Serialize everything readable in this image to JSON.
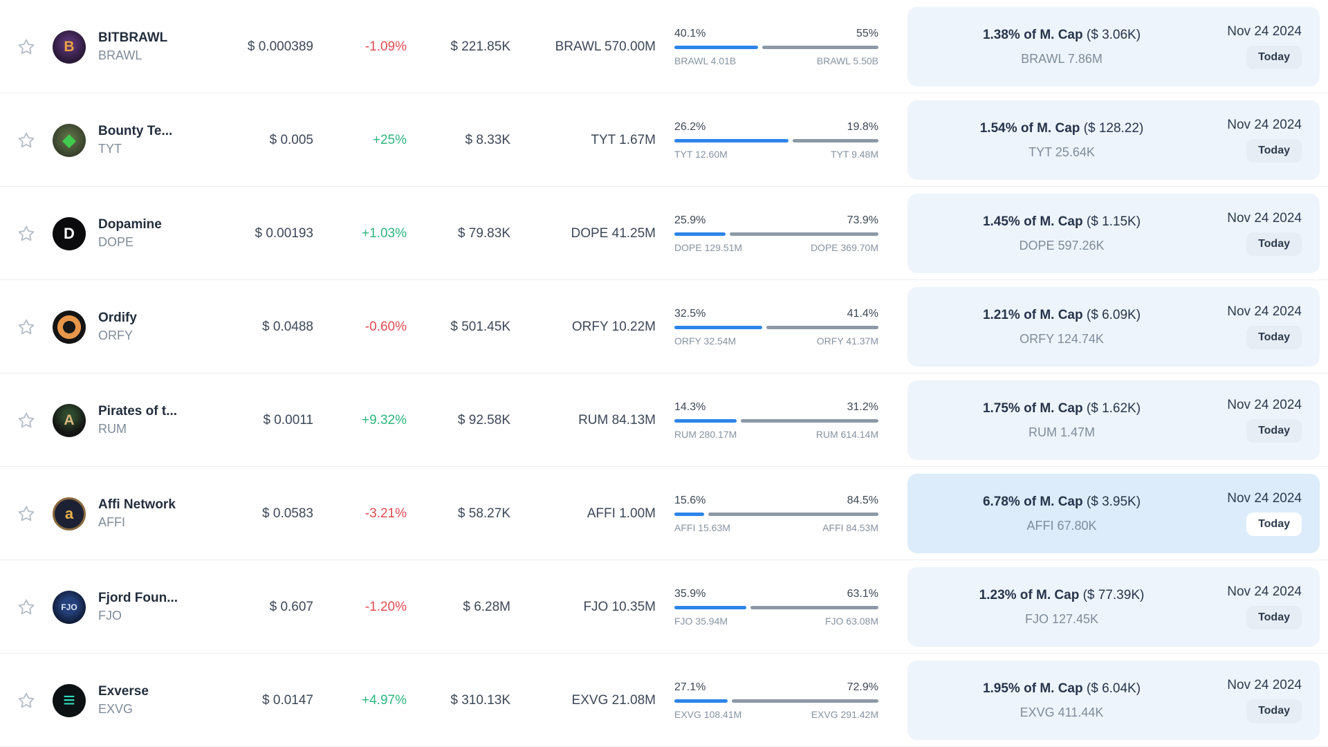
{
  "colors": {
    "accent_blue": "#2d84e9",
    "bar_gray": "#8d99a6",
    "up_green": "#2eb57e",
    "down_red": "#e04b52",
    "panel_bg": "#eef4fb",
    "panel_bg_highlighted": "#dcecfa",
    "badge_bg": "#e7edf4",
    "badge_bg_highlighted": "#ffffff"
  },
  "table": {
    "rows": [
      {
        "name": "BITBRAWL",
        "ticker": "BRAWL",
        "price": "$ 0.000389",
        "change": "-1.09%",
        "direction": "down",
        "volume": "$ 221.85K",
        "unlock": "BRAWL 570.00M",
        "pct_left": "40.1%",
        "pct_right": "55%",
        "lbl_left": "BRAWL 4.01B",
        "lbl_right": "BRAWL 5.50B",
        "mcap_bold": "1.38% of M. Cap",
        "mcap_paren": "($ 3.06K)",
        "mcap_sub": "BRAWL 7.86M",
        "date": "Nov 24 2024",
        "today": "Today",
        "highlighted": false,
        "logo": {
          "icon": "bitbrawl-logo",
          "glyph": "B",
          "bg": "radial-gradient(circle at 50% 42%, #53306b 0 8px, #2b1a3a 65%)",
          "fg": "#eca33f",
          "size": "21px"
        }
      },
      {
        "name": "Bounty Te...",
        "ticker": "TYT",
        "price": "$ 0.005",
        "change": "+25%",
        "direction": "up",
        "volume": "$ 8.33K",
        "unlock": "TYT 1.67M",
        "pct_left": "26.2%",
        "pct_right": "19.8%",
        "lbl_left": "TYT 12.60M",
        "lbl_right": "TYT 9.48M",
        "mcap_bold": "1.54% of M. Cap",
        "mcap_paren": "($ 128.22)",
        "mcap_sub": "TYT 25.64K",
        "date": "Nov 24 2024",
        "today": "Today",
        "highlighted": false,
        "logo": {
          "icon": "bounty-temple-logo",
          "glyph": "◆",
          "bg": "radial-gradient(circle at 50% 45%, #5a6b43 0 6px, #37402c 70%)",
          "fg": "#3ecb4e",
          "size": "26px"
        }
      },
      {
        "name": "Dopamine",
        "ticker": "DOPE",
        "price": "$ 0.00193",
        "change": "+1.03%",
        "direction": "up",
        "volume": "$ 79.83K",
        "unlock": "DOPE 41.25M",
        "pct_left": "25.9%",
        "pct_right": "73.9%",
        "lbl_left": "DOPE 129.51M",
        "lbl_right": "DOPE 369.70M",
        "mcap_bold": "1.45% of M. Cap",
        "mcap_paren": "($ 1.15K)",
        "mcap_sub": "DOPE 597.26K",
        "date": "Nov 24 2024",
        "today": "Today",
        "highlighted": false,
        "logo": {
          "icon": "dopamine-logo",
          "glyph": "D",
          "bg": "#0b0b0d",
          "fg": "#ffffff",
          "size": "22px"
        }
      },
      {
        "name": "Ordify",
        "ticker": "ORFY",
        "price": "$ 0.0488",
        "change": "-0.60%",
        "direction": "down",
        "volume": "$ 501.45K",
        "unlock": "ORFY 10.22M",
        "pct_left": "32.5%",
        "pct_right": "41.4%",
        "lbl_left": "ORFY 32.54M",
        "lbl_right": "ORFY 41.37M",
        "mcap_bold": "1.21% of M. Cap",
        "mcap_paren": "($ 6.09K)",
        "mcap_sub": "ORFY 124.74K",
        "date": "Nov 24 2024",
        "today": "Today",
        "highlighted": false,
        "logo": {
          "icon": "ordify-logo",
          "glyph": "",
          "bg": "radial-gradient(circle at 50% 50%, #181818 0 9px, #e8964a 9px 17px, #141414 17px 24px)",
          "fg": "#e8964a",
          "size": "20px"
        }
      },
      {
        "name": "Pirates of t...",
        "ticker": "RUM",
        "price": "$ 0.0011",
        "change": "+9.32%",
        "direction": "up",
        "volume": "$ 92.58K",
        "unlock": "RUM 84.13M",
        "pct_left": "14.3%",
        "pct_right": "31.2%",
        "lbl_left": "RUM 280.17M",
        "lbl_right": "RUM 614.14M",
        "mcap_bold": "1.75% of M. Cap",
        "mcap_paren": "($ 1.62K)",
        "mcap_sub": "RUM 1.47M",
        "date": "Nov 24 2024",
        "today": "Today",
        "highlighted": false,
        "logo": {
          "icon": "pirates-logo",
          "glyph": "A",
          "bg": "radial-gradient(circle at 50% 35%, #2e4a2e 0 7px, #131313 65%)",
          "fg": "#d9b77c",
          "size": "21px"
        }
      },
      {
        "name": "Affi Network",
        "ticker": "AFFI",
        "price": "$ 0.0583",
        "change": "-3.21%",
        "direction": "down",
        "volume": "$ 58.27K",
        "unlock": "AFFI 1.00M",
        "pct_left": "15.6%",
        "pct_right": "84.5%",
        "lbl_left": "AFFI 15.63M",
        "lbl_right": "AFFI 84.53M",
        "mcap_bold": "6.78% of M. Cap",
        "mcap_paren": "($ 3.95K)",
        "mcap_sub": "AFFI 67.80K",
        "date": "Nov 24 2024",
        "today": "Today",
        "highlighted": true,
        "logo": {
          "icon": "affi-network-logo",
          "glyph": "a",
          "bg": "#1c2133",
          "fg": "#e8b24a",
          "size": "22px",
          "border": "3px solid #8a6a3f"
        }
      },
      {
        "name": "Fjord Foun...",
        "ticker": "FJO",
        "price": "$ 0.607",
        "change": "-1.20%",
        "direction": "down",
        "volume": "$ 6.28M",
        "unlock": "FJO 10.35M",
        "pct_left": "35.9%",
        "pct_right": "63.1%",
        "lbl_left": "FJO 35.94M",
        "lbl_right": "FJO 63.08M",
        "mcap_bold": "1.23% of M. Cap",
        "mcap_paren": "($ 77.39K)",
        "mcap_sub": "FJO 127.45K",
        "date": "Nov 24 2024",
        "today": "Today",
        "highlighted": false,
        "logo": {
          "icon": "fjord-foundry-logo",
          "glyph": "FJO",
          "bg": "radial-gradient(circle at 50% 45%, #24407a 0 30%, #0e1830 75%)",
          "fg": "#dfe7f5",
          "size": "12px"
        }
      },
      {
        "name": "Exverse",
        "ticker": "EXVG",
        "price": "$ 0.0147",
        "change": "+4.97%",
        "direction": "up",
        "volume": "$ 310.13K",
        "unlock": "EXVG 21.08M",
        "pct_left": "27.1%",
        "pct_right": "72.9%",
        "lbl_left": "EXVG 108.41M",
        "lbl_right": "EXVG 291.42M",
        "mcap_bold": "1.95% of M. Cap",
        "mcap_paren": "($ 6.04K)",
        "mcap_sub": "EXVG 411.44K",
        "date": "Nov 24 2024",
        "today": "Today",
        "highlighted": false,
        "logo": {
          "icon": "exverse-logo",
          "glyph": "≡",
          "bg": "#0c1113",
          "fg": "#2fe0bf",
          "size": "30px"
        }
      }
    ]
  }
}
